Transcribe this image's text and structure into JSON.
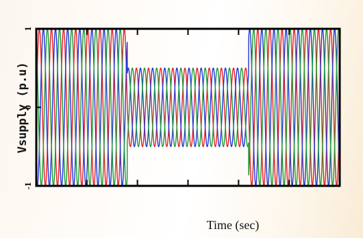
{
  "chart_data": {
    "type": "line",
    "title": "",
    "xlabel": "Time (sec)",
    "ylabel": "Vsupply (p.u)",
    "ylim": [
      -1,
      1
    ],
    "y_ticks": [
      "1",
      "0",
      "-1"
    ],
    "x_ticks": [
      "",
      "",
      "",
      "",
      ""
    ],
    "grid": false,
    "frequency_hz": 50,
    "x_range_sec": [
      0,
      0.5
    ],
    "sag_interval_sec": [
      0.15,
      0.35
    ],
    "amplitude_normal": 1.0,
    "amplitude_sag": 0.5,
    "series": [
      {
        "phase_deg": 0,
        "color": "#e41f26"
      },
      {
        "phase_deg": -120,
        "color": "#1f36d9"
      },
      {
        "phase_deg": 120,
        "color": "#1a9a38"
      }
    ]
  }
}
